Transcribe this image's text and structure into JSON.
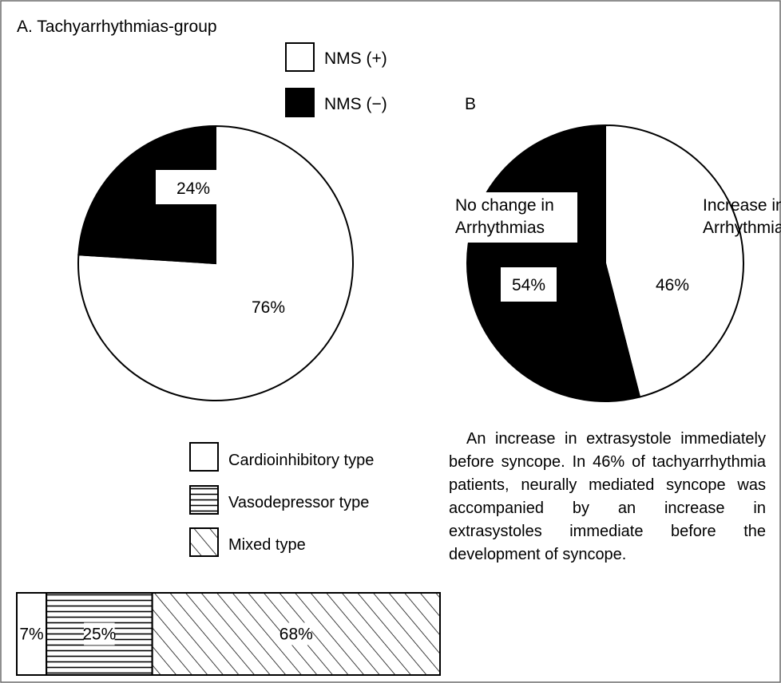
{
  "chart_data": [
    {
      "type": "pie",
      "title": "A. Tachyarrhythmias-group",
      "legend": {
        "placement": "top-center"
      },
      "slices": [
        {
          "label": "NMS (+)",
          "value": 76,
          "display": "76%",
          "color": "#ffffff"
        },
        {
          "label": "NMS (−)",
          "value": 24,
          "display": "24%",
          "color": "#000000"
        }
      ]
    },
    {
      "type": "pie",
      "title": "B",
      "slices": [
        {
          "label_lines": [
            "Increase in",
            "Arrhythmias"
          ],
          "value": 46,
          "display": "46%",
          "color": "#ffffff"
        },
        {
          "label_lines": [
            "No change in",
            "Arrhythmias"
          ],
          "value": 54,
          "display": "54%",
          "color": "#000000"
        }
      ]
    },
    {
      "type": "bar",
      "orientation": "horizontal-stacked",
      "legend": {
        "placement": "above"
      },
      "segments": [
        {
          "label": "Cardioinhibitory type",
          "value": 7,
          "display": "7%",
          "pattern": "none"
        },
        {
          "label": "Vasodepressor type",
          "value": 25,
          "display": "25%",
          "pattern": "horizontal-lines"
        },
        {
          "label": "Mixed type",
          "value": 68,
          "display": "68%",
          "pattern": "diagonal-lines"
        }
      ]
    }
  ],
  "note": "An increase in extrasystole immediately before syncope. In 46% of tachyarrhythmia patients, neurally mediated syncope was accompanied by an increase in extrasystoles immediate before the development of syncope."
}
